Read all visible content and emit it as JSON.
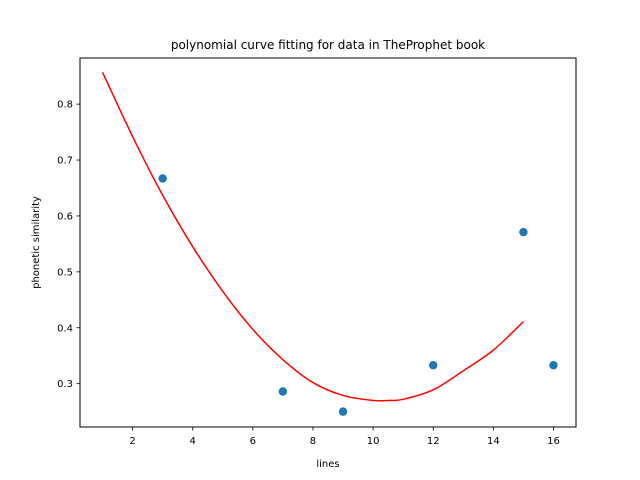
{
  "chart_data": {
    "type": "scatter",
    "title": "polynomial curve fitting for data in TheProphet book",
    "xlabel": "lines",
    "ylabel": "phonetic similarity",
    "xlim": [
      0.25,
      16.75
    ],
    "ylim": [
      0.2225,
      0.8825
    ],
    "xticks": [
      2,
      4,
      6,
      8,
      10,
      12,
      14,
      16
    ],
    "yticks": [
      0.3,
      0.4,
      0.5,
      0.6,
      0.7,
      0.8
    ],
    "grid": false,
    "series": [
      {
        "kind": "scatter",
        "color": "#1f77b4",
        "x": [
          3,
          7,
          9,
          12,
          15,
          16
        ],
        "y": [
          0.667,
          0.286,
          0.25,
          0.333,
          0.571,
          0.333
        ]
      },
      {
        "kind": "line",
        "color": "#ff0000",
        "x": [
          1,
          2,
          3,
          4,
          5,
          6,
          7,
          8,
          9,
          10,
          10.5,
          11,
          12,
          13,
          14,
          15
        ],
        "y": [
          0.857,
          0.742,
          0.637,
          0.545,
          0.465,
          0.397,
          0.343,
          0.302,
          0.279,
          0.27,
          0.27,
          0.272,
          0.289,
          0.323,
          0.36,
          0.411
        ]
      }
    ]
  }
}
